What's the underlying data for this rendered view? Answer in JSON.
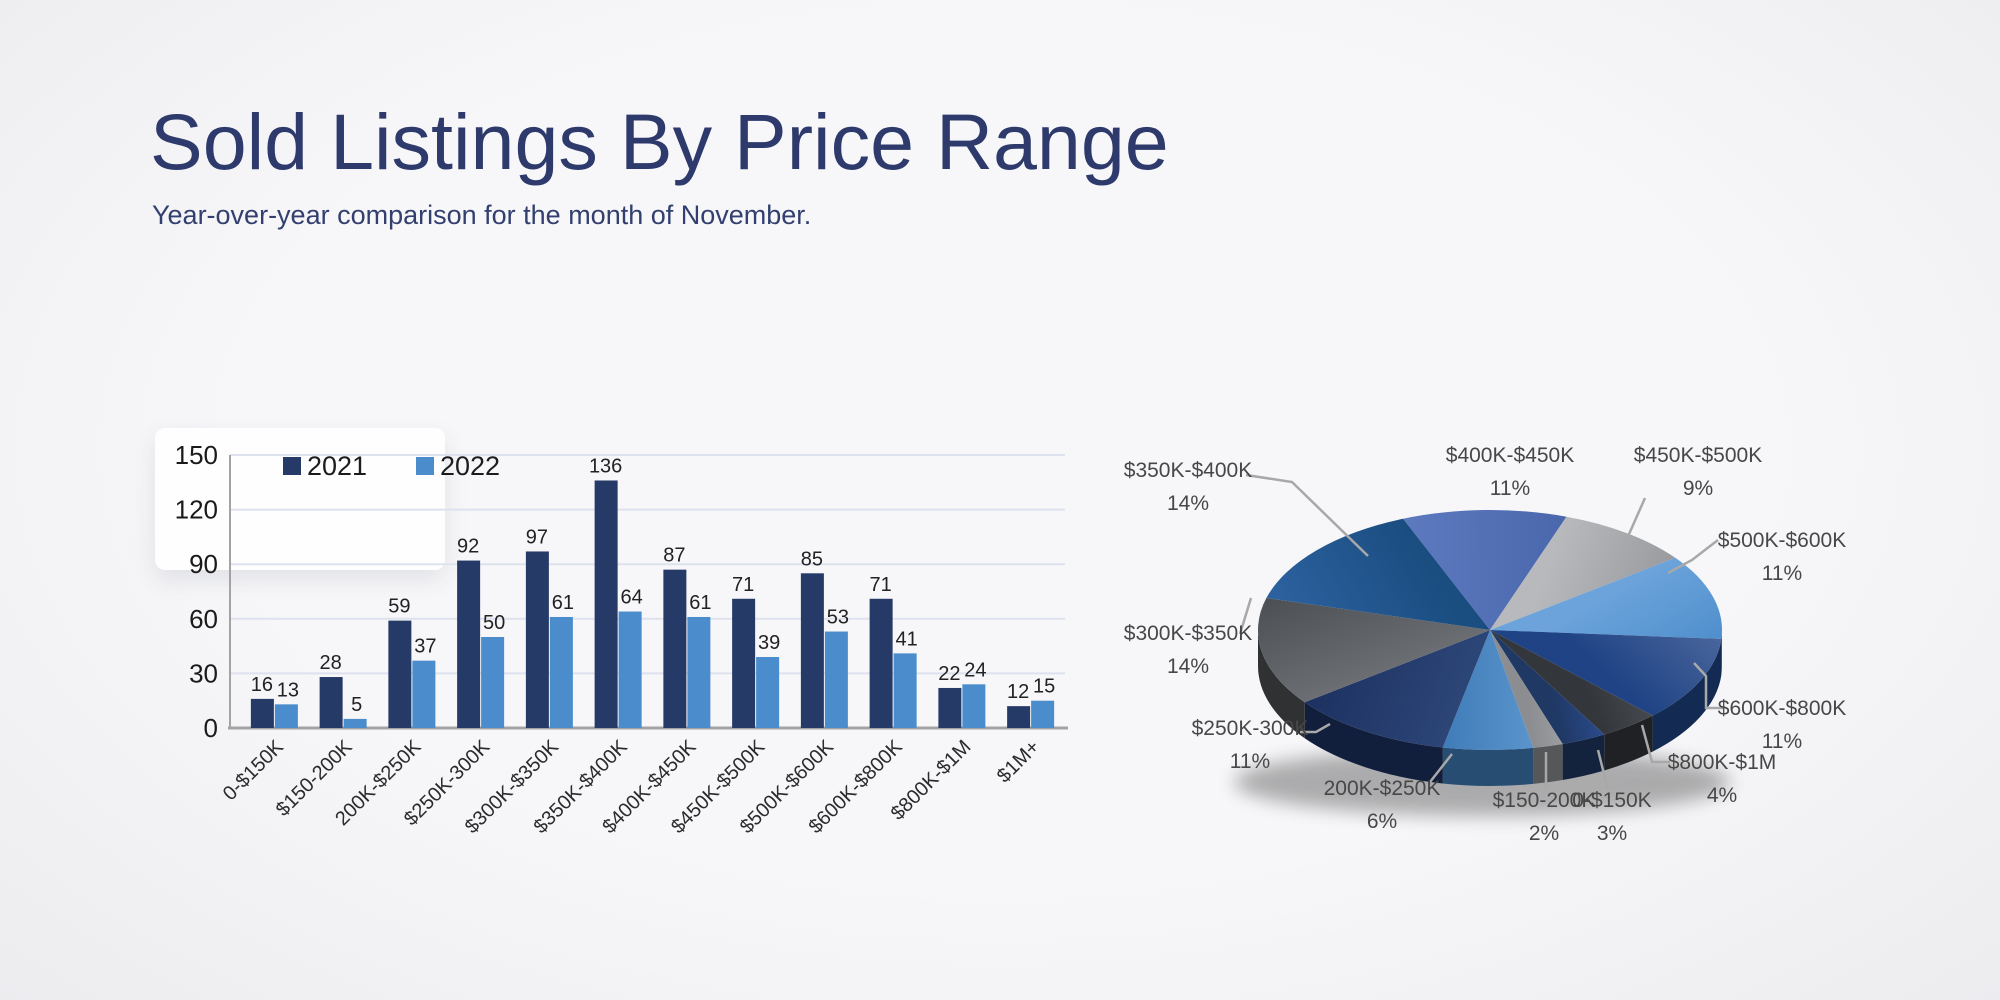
{
  "page": {
    "background": "#f3f4f6",
    "accent_navy": "#263a67",
    "accent_blue": "#4a8ccc"
  },
  "header": {
    "title": "Sold Listings By Price Range",
    "subtitle": "Year-over-year comparison for the month of November."
  },
  "chart_data": [
    {
      "type": "bar",
      "title": "",
      "xlabel": "",
      "ylabel": "",
      "ylim": [
        0,
        150
      ],
      "yticks": [
        0,
        30,
        60,
        90,
        120,
        150
      ],
      "grid": true,
      "legend_position": "top-left",
      "categories": [
        "0-$150K",
        "$150-200K",
        "200K-$250K",
        "$250K-300K",
        "$300K-$350K",
        "$350K-$400K",
        "$400K-$450K",
        "$450K-$500K",
        "$500K-$600K",
        "$600K-$800K",
        "$800K-$1M",
        "$1M+"
      ],
      "series": [
        {
          "name": "2021",
          "color": "#263a67",
          "values": [
            16,
            28,
            59,
            92,
            97,
            136,
            87,
            71,
            85,
            71,
            22,
            12
          ]
        },
        {
          "name": "2022",
          "color": "#4a8ccc",
          "values": [
            13,
            5,
            37,
            50,
            61,
            64,
            61,
            39,
            53,
            41,
            24,
            15
          ]
        }
      ]
    },
    {
      "type": "pie",
      "style": "3d",
      "percent_suffix": "%",
      "slices": [
        {
          "label": "$400K-$450K",
          "pct": 11,
          "colors": [
            "#5d7ac0",
            "#4a67ac"
          ]
        },
        {
          "label": "$450K-$500K",
          "pct": 9,
          "colors": [
            "#b7b9bc",
            "#999b9f"
          ]
        },
        {
          "label": "$500K-$600K",
          "pct": 11,
          "colors": [
            "#6ba3da",
            "#4f8fcd"
          ]
        },
        {
          "label": "$600K-$800K",
          "pct": 11,
          "colors": [
            "#49659c",
            "#1f4384"
          ]
        },
        {
          "label": "$800K-$1M",
          "pct": 4,
          "colors": [
            "#46494e",
            "#33363b"
          ]
        },
        {
          "label": "0-$150K",
          "pct": 3,
          "colors": [
            "#2a4a8c",
            "#1f3864"
          ]
        },
        {
          "label": "$150-200K",
          "pct": 2,
          "colors": [
            "#9b9da0",
            "#8b8d90"
          ]
        },
        {
          "label": "200K-$250K",
          "pct": 6,
          "colors": [
            "#5b94cc",
            "#3f7cb8"
          ]
        },
        {
          "label": "$250K-300K",
          "pct": 11,
          "colors": [
            "#2c4577",
            "#1c3160"
          ]
        },
        {
          "label": "$300K-$350K",
          "pct": 14,
          "colors": [
            "#6b6e72",
            "#4c4f53"
          ]
        },
        {
          "label": "$350K-$400K",
          "pct": 14,
          "colors": [
            "#2d62a0",
            "#1a4d80"
          ]
        }
      ]
    }
  ]
}
